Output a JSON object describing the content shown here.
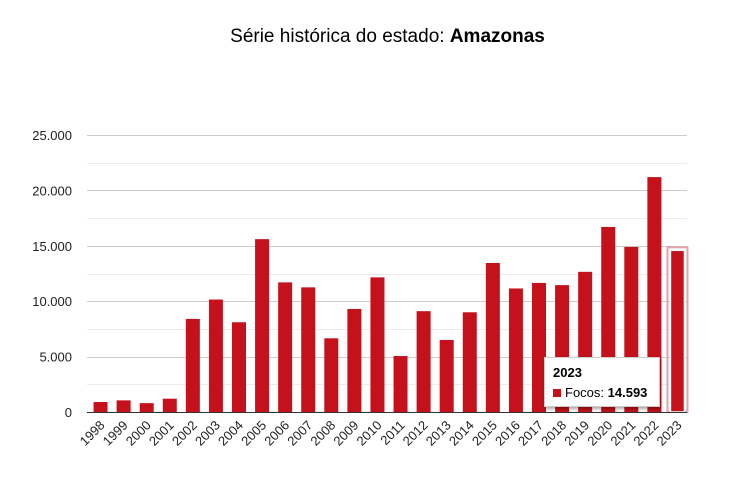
{
  "title": {
    "prefix": "Série histórica do estado:",
    "state": "Amazonas"
  },
  "colors": {
    "bar": "#c5111b",
    "grid_major": "#cccccc",
    "grid_minor": "#ebebeb",
    "axis_text": "#222222"
  },
  "chart_data": {
    "type": "bar",
    "title": "Série histórica do estado: Amazonas",
    "xlabel": "",
    "ylabel": "",
    "ylim": [
      0,
      25000
    ],
    "y_ticks": [
      0,
      5000,
      10000,
      15000,
      20000,
      25000
    ],
    "y_tick_labels": [
      "0",
      "5.000",
      "10.000",
      "15.000",
      "20.000",
      "25.000"
    ],
    "categories": [
      "1998",
      "1999",
      "2000",
      "2001",
      "2002",
      "2003",
      "2004",
      "2005",
      "2006",
      "2007",
      "2008",
      "2009",
      "2010",
      "2011",
      "2012",
      "2013",
      "2014",
      "2015",
      "2016",
      "2017",
      "2018",
      "2019",
      "2020",
      "2021",
      "2022",
      "2023"
    ],
    "series": [
      {
        "name": "Focos",
        "values": [
          900,
          1050,
          800,
          1200,
          8400,
          10150,
          8100,
          15600,
          11700,
          11250,
          6650,
          9300,
          12150,
          5050,
          9100,
          6500,
          9000,
          13450,
          11150,
          11650,
          11450,
          12650,
          16700,
          14900,
          21200,
          14593
        ]
      }
    ],
    "highlighted": {
      "category": "2023",
      "series_label": "Focos:",
      "value_label": "14.593"
    }
  }
}
